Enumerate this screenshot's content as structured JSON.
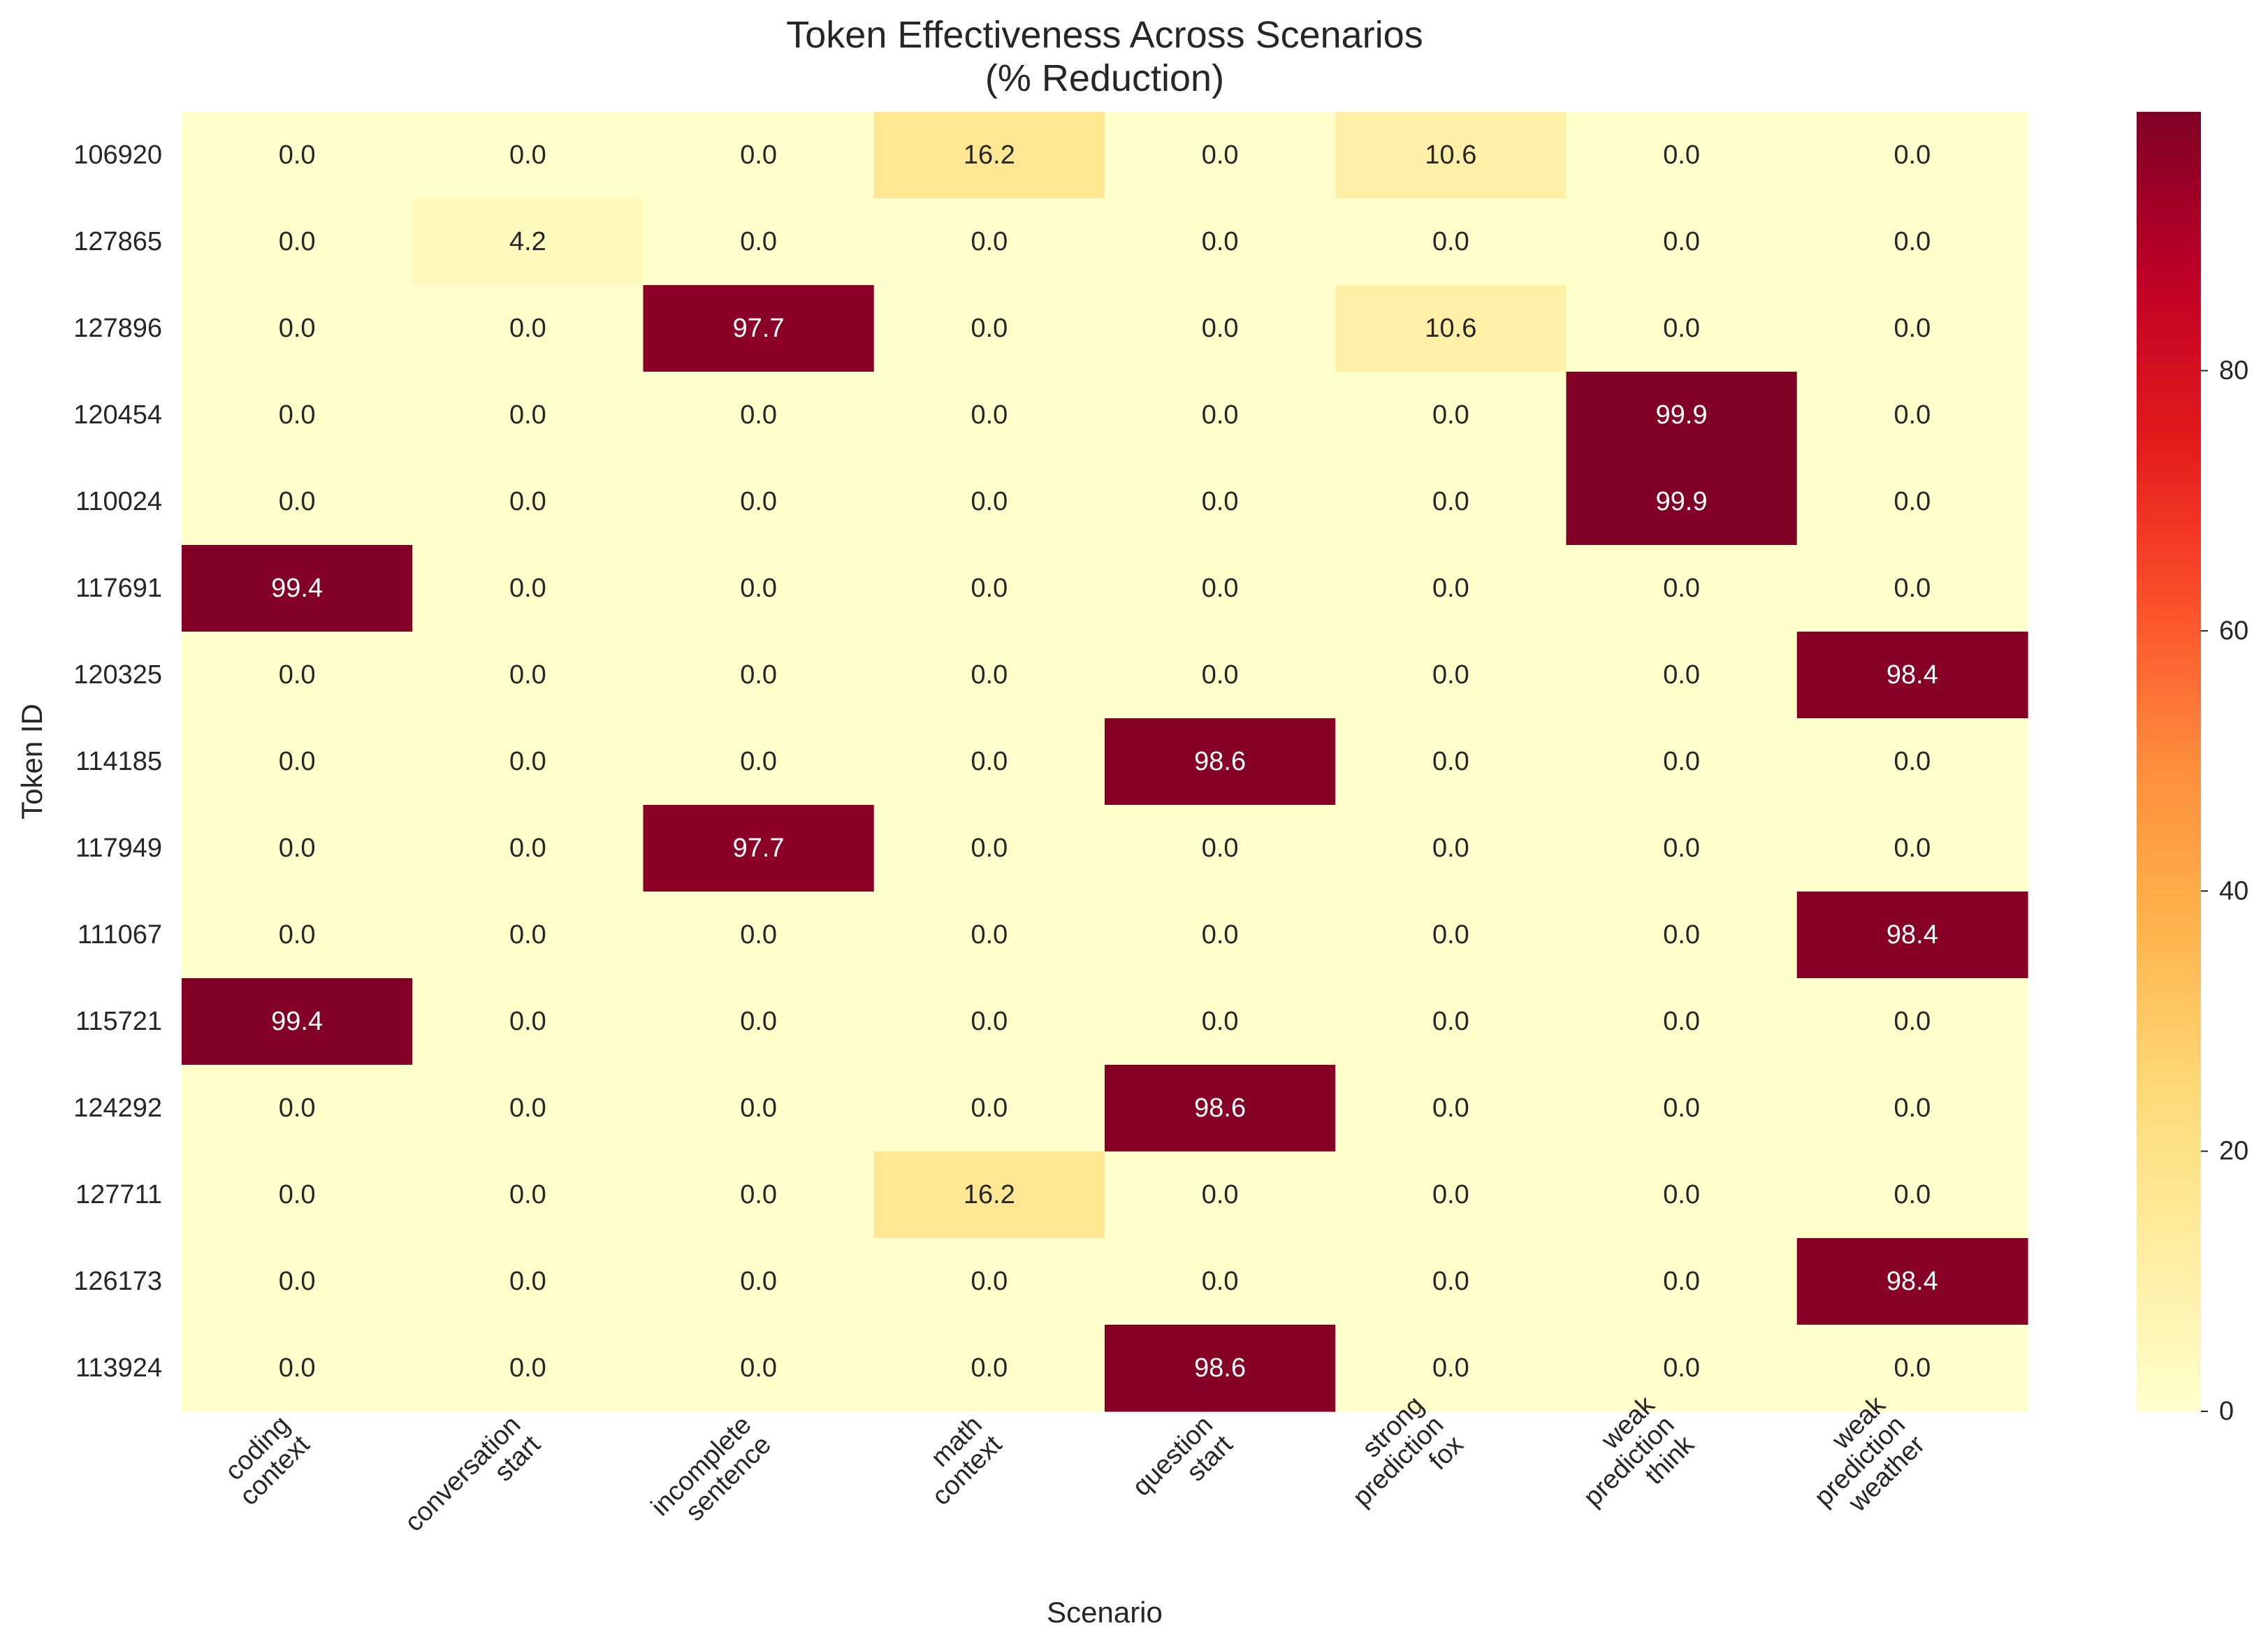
{
  "chart_data": {
    "type": "heatmap",
    "title": [
      "Token Effectiveness Across Scenarios",
      "(% Reduction)"
    ],
    "xlabel": "Scenario",
    "ylabel": "Token ID",
    "x_categories": [
      [
        "coding",
        "context"
      ],
      [
        "conversation",
        "start"
      ],
      [
        "incomplete",
        "sentence"
      ],
      [
        "math",
        "context"
      ],
      [
        "question",
        "start"
      ],
      [
        "strong",
        "prediction",
        "fox"
      ],
      [
        "weak",
        "prediction",
        "think"
      ],
      [
        "weak",
        "prediction",
        "weather"
      ]
    ],
    "y_categories": [
      "106920",
      "127865",
      "127896",
      "120454",
      "110024",
      "117691",
      "120325",
      "114185",
      "117949",
      "111067",
      "115721",
      "124292",
      "127711",
      "126173",
      "113924"
    ],
    "values": [
      [
        0.0,
        0.0,
        0.0,
        16.2,
        0.0,
        10.6,
        0.0,
        0.0
      ],
      [
        0.0,
        4.2,
        0.0,
        0.0,
        0.0,
        0.0,
        0.0,
        0.0
      ],
      [
        0.0,
        0.0,
        97.7,
        0.0,
        0.0,
        10.6,
        0.0,
        0.0
      ],
      [
        0.0,
        0.0,
        0.0,
        0.0,
        0.0,
        0.0,
        99.9,
        0.0
      ],
      [
        0.0,
        0.0,
        0.0,
        0.0,
        0.0,
        0.0,
        99.9,
        0.0
      ],
      [
        99.4,
        0.0,
        0.0,
        0.0,
        0.0,
        0.0,
        0.0,
        0.0
      ],
      [
        0.0,
        0.0,
        0.0,
        0.0,
        0.0,
        0.0,
        0.0,
        98.4
      ],
      [
        0.0,
        0.0,
        0.0,
        0.0,
        98.6,
        0.0,
        0.0,
        0.0
      ],
      [
        0.0,
        0.0,
        97.7,
        0.0,
        0.0,
        0.0,
        0.0,
        0.0
      ],
      [
        0.0,
        0.0,
        0.0,
        0.0,
        0.0,
        0.0,
        0.0,
        98.4
      ],
      [
        99.4,
        0.0,
        0.0,
        0.0,
        0.0,
        0.0,
        0.0,
        0.0
      ],
      [
        0.0,
        0.0,
        0.0,
        0.0,
        98.6,
        0.0,
        0.0,
        0.0
      ],
      [
        0.0,
        0.0,
        0.0,
        16.2,
        0.0,
        0.0,
        0.0,
        0.0
      ],
      [
        0.0,
        0.0,
        0.0,
        0.0,
        0.0,
        0.0,
        0.0,
        98.4
      ],
      [
        0.0,
        0.0,
        0.0,
        0.0,
        98.6,
        0.0,
        0.0,
        0.0
      ]
    ],
    "value_format": "0.0",
    "colorbar": {
      "colormap": "YlOrRd",
      "range": [
        0,
        99.9
      ],
      "ticks": [
        "0",
        "20",
        "40",
        "60",
        "80"
      ]
    },
    "grid": false
  }
}
